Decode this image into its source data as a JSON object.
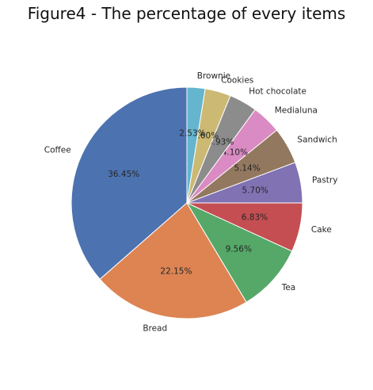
{
  "chart_data": {
    "type": "pie",
    "title": "Figure4 - The percentage of every items",
    "categories": [
      "Coffee",
      "Bread",
      "Tea",
      "Cake",
      "Pastry",
      "Sandwich",
      "Medialuna",
      "Hot chocolate",
      "Cookies",
      "Brownie"
    ],
    "values": [
      36.45,
      22.15,
      9.56,
      6.83,
      5.7,
      5.14,
      4.1,
      3.93,
      3.6,
      2.53
    ],
    "value_labels": [
      "36.45%",
      "22.15%",
      "9.56%",
      "6.83%",
      "5.70%",
      "5.14%",
      "4.10%",
      "3.93%",
      "3.60%",
      "2.53%"
    ],
    "colors": [
      "#4c72b0",
      "#dd8452",
      "#55a868",
      "#c44e52",
      "#8172b3",
      "#937860",
      "#da8bc3",
      "#8c8c8c",
      "#ccb974",
      "#64b5cd"
    ],
    "start_angle_deg": 90,
    "direction": "counterclockwise"
  }
}
